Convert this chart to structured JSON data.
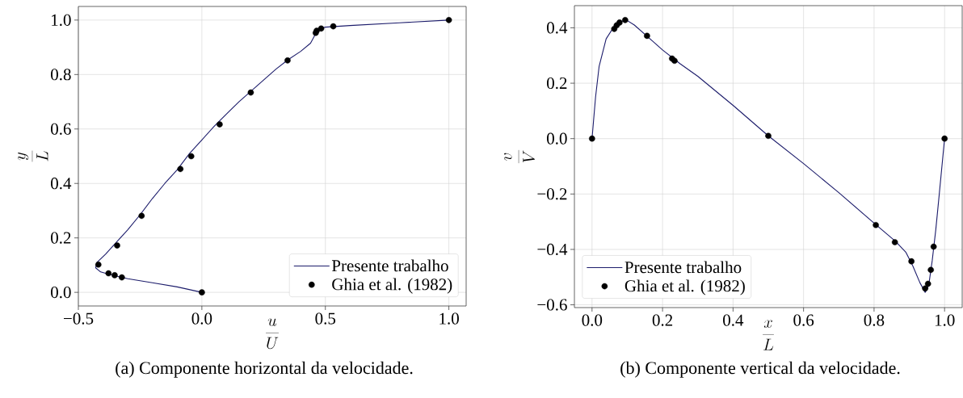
{
  "chart_data": [
    {
      "type": "line",
      "xlabel": "\\frac{u}{U}",
      "ylabel": "\\frac{y}{L}",
      "xlim": [
        -0.5,
        1.07
      ],
      "ylim": [
        -0.05,
        1.05
      ],
      "xticks": [
        {
          "value": -0.5,
          "label": "−0.5"
        },
        {
          "value": 0,
          "label": "0.0"
        },
        {
          "value": 0.5,
          "label": "0.5"
        },
        {
          "value": 1,
          "label": "1.0"
        }
      ],
      "yticks": [
        {
          "value": 0,
          "label": "0.0"
        },
        {
          "value": 0.2,
          "label": "0.2"
        },
        {
          "value": 0.4,
          "label": "0.4"
        },
        {
          "value": 0.6,
          "label": "0.6"
        },
        {
          "value": 0.8,
          "label": "0.8"
        },
        {
          "value": 1,
          "label": "1.0"
        }
      ],
      "grid": true,
      "legend": "bottom right",
      "series": [
        {
          "name": "Presente trabalho",
          "type": "line",
          "marker": "none",
          "color": "#1c1c6b",
          "x": [
            0,
            -0.1,
            -0.2,
            -0.3,
            -0.37,
            -0.41,
            -0.43,
            -0.425,
            -0.39,
            -0.35,
            -0.3,
            -0.25,
            -0.2,
            -0.15,
            -0.1,
            -0.05,
            0,
            0.05,
            0.1,
            0.15,
            0.2,
            0.25,
            0.3,
            0.35,
            0.4,
            0.44,
            0.455,
            0.46,
            0.47,
            0.5,
            0.6,
            0.8,
            1
          ],
          "values": [
            0,
            0.02,
            0.035,
            0.05,
            0.065,
            0.075,
            0.09,
            0.11,
            0.14,
            0.18,
            0.23,
            0.285,
            0.345,
            0.4,
            0.45,
            0.51,
            0.56,
            0.61,
            0.655,
            0.7,
            0.74,
            0.78,
            0.82,
            0.855,
            0.885,
            0.915,
            0.94,
            0.955,
            0.967,
            0.974,
            0.98,
            0.99,
            1
          ]
        },
        {
          "name": "Ghia et al. (1982)",
          "type": "scatter",
          "marker": "circle",
          "color": "#000000",
          "x": [
            1,
            0.532,
            0.483,
            0.465,
            0.461,
            0.347,
            0.198,
            0.072,
            -0.043,
            -0.087,
            -0.244,
            -0.343,
            -0.419,
            -0.378,
            -0.353,
            -0.324,
            0
          ],
          "values": [
            1,
            0.977,
            0.969,
            0.961,
            0.953,
            0.852,
            0.734,
            0.617,
            0.5,
            0.453,
            0.281,
            0.172,
            0.102,
            0.07,
            0.063,
            0.055,
            0
          ]
        }
      ],
      "annotations": [
        "(a) Componente horizontal da velocidade."
      ]
    },
    {
      "type": "line",
      "xlabel": "\\frac{x}{L}",
      "ylabel": "\\frac{v}{V}",
      "xlim": [
        -0.05,
        1.05
      ],
      "ylim": [
        -0.61,
        0.48
      ],
      "xticks": [
        {
          "value": 0,
          "label": "0.0"
        },
        {
          "value": 0.2,
          "label": "0.2"
        },
        {
          "value": 0.4,
          "label": "0.4"
        },
        {
          "value": 0.6,
          "label": "0.6"
        },
        {
          "value": 0.8,
          "label": "0.8"
        },
        {
          "value": 1,
          "label": "1.0"
        }
      ],
      "yticks": [
        {
          "value": -0.6,
          "label": "−0.6"
        },
        {
          "value": -0.4,
          "label": "−0.4"
        },
        {
          "value": -0.2,
          "label": "−0.2"
        },
        {
          "value": 0,
          "label": "0.0"
        },
        {
          "value": 0.2,
          "label": "0.2"
        },
        {
          "value": 0.4,
          "label": "0.4"
        }
      ],
      "grid": true,
      "legend": "bottom left",
      "series": [
        {
          "name": "Presente trabalho",
          "type": "line",
          "marker": "none",
          "color": "#1c1c6b",
          "x": [
            0,
            0.01,
            0.02,
            0.04,
            0.06,
            0.08,
            0.095,
            0.12,
            0.16,
            0.2,
            0.25,
            0.3,
            0.4,
            0.5,
            0.6,
            0.7,
            0.8,
            0.86,
            0.89,
            0.91,
            0.93,
            0.945,
            0.955,
            0.965,
            0.975,
            0.985,
            1
          ],
          "values": [
            0,
            0.15,
            0.26,
            0.36,
            0.4,
            0.42,
            0.43,
            0.41,
            0.365,
            0.32,
            0.27,
            0.225,
            0.12,
            0.01,
            -0.09,
            -0.195,
            -0.305,
            -0.37,
            -0.41,
            -0.46,
            -0.52,
            -0.555,
            -0.53,
            -0.44,
            -0.33,
            -0.2,
            0
          ]
        },
        {
          "name": "Ghia et al. (1982)",
          "type": "scatter",
          "marker": "circle",
          "color": "#000000",
          "x": [
            1,
            0.969,
            0.961,
            0.953,
            0.945,
            0.906,
            0.859,
            0.805,
            0.5,
            0.234,
            0.227,
            0.156,
            0.094,
            0.078,
            0.07,
            0.063,
            0
          ],
          "values": [
            0,
            -0.39,
            -0.474,
            -0.524,
            -0.541,
            -0.443,
            -0.374,
            -0.312,
            0.01,
            0.281,
            0.289,
            0.371,
            0.428,
            0.419,
            0.409,
            0.396,
            0
          ]
        }
      ],
      "annotations": [
        "(b) Componente vertical da velocidade."
      ]
    }
  ]
}
